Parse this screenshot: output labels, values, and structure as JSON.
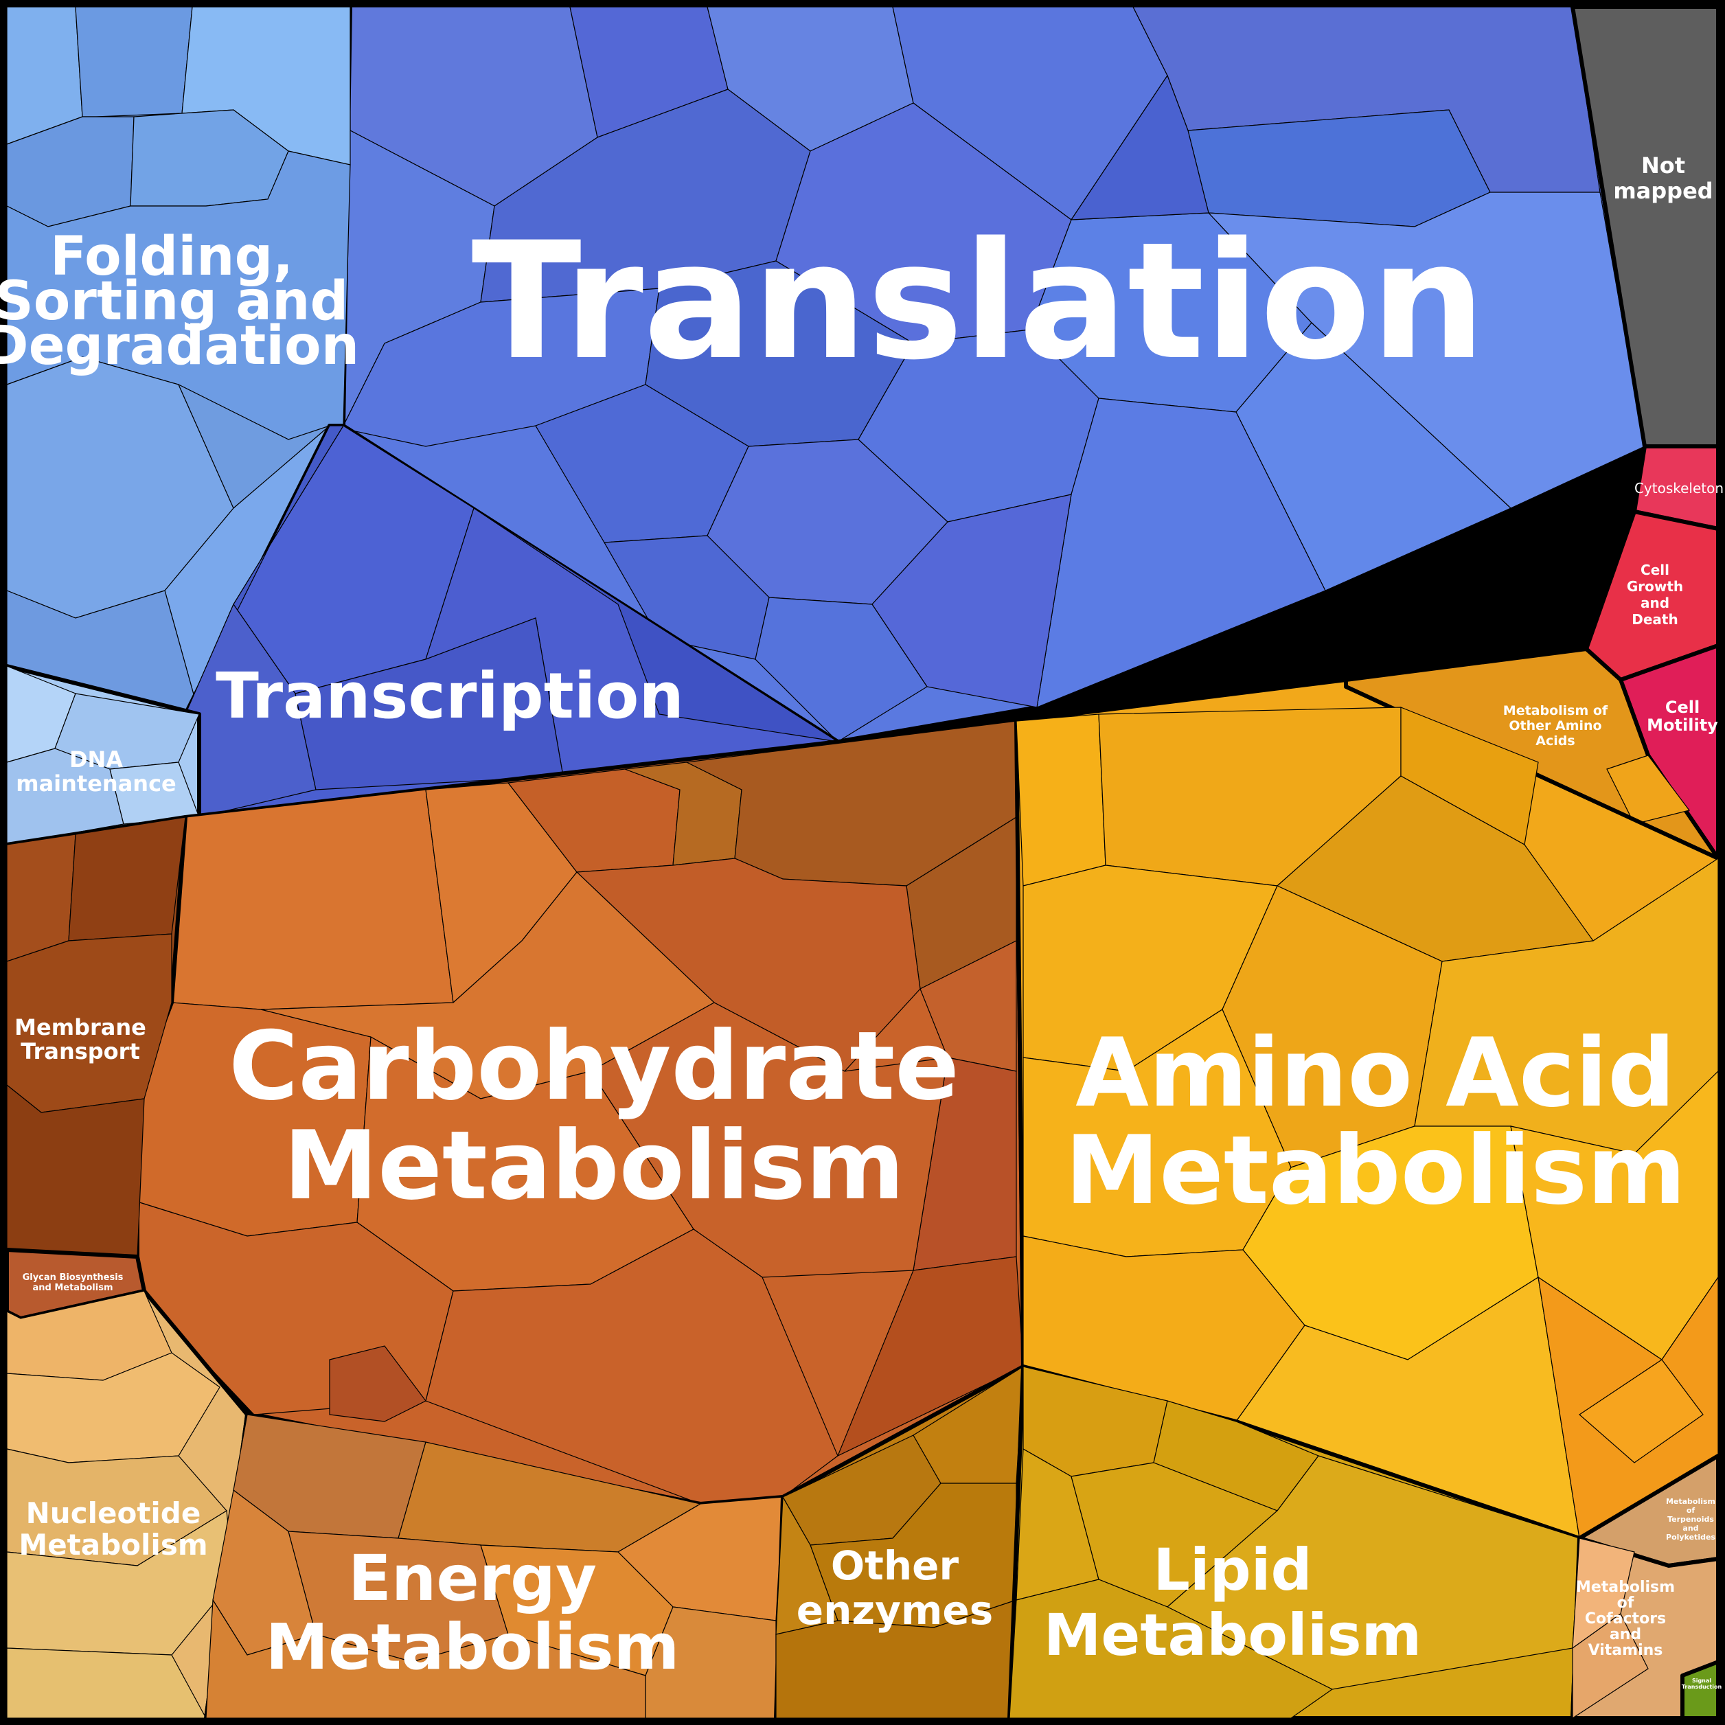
{
  "diagram": {
    "type": "voronoi-treemap",
    "regions": [
      {
        "id": "translation",
        "label_lines": [
          "Translation"
        ],
        "color": "#5a79e0"
      },
      {
        "id": "folding",
        "label_lines": [
          "Folding,",
          "Sorting and",
          "Degradation"
        ],
        "color": "#6f9de6"
      },
      {
        "id": "transcription",
        "label_lines": [
          "Transcription"
        ],
        "color": "#4a5fd0"
      },
      {
        "id": "dna",
        "label_lines": [
          "DNA",
          "maintenance"
        ],
        "color": "#a8cbf4"
      },
      {
        "id": "not_mapped",
        "label_lines": [
          "Not",
          "mapped"
        ],
        "color": "#5e5e5e"
      },
      {
        "id": "cytoskeleton",
        "label_lines": [
          "Cytoskeleton"
        ],
        "color": "#e8375a"
      },
      {
        "id": "cell_growth",
        "label_lines": [
          "Cell",
          "Growth",
          "and",
          "Death"
        ],
        "color": "#e83048"
      },
      {
        "id": "cell_motility",
        "label_lines": [
          "Cell",
          "Motility"
        ],
        "color": "#e01e58"
      },
      {
        "id": "other_amino",
        "label_lines": [
          "Metabolism of",
          "Other Amino",
          "Acids"
        ],
        "color": "#e3961a"
      },
      {
        "id": "carbohydrate",
        "label_lines": [
          "Carbohydrate",
          "Metabolism"
        ],
        "color": "#c9632a"
      },
      {
        "id": "amino_acid",
        "label_lines": [
          "Amino Acid",
          "Metabolism"
        ],
        "color": "#f2a81a"
      },
      {
        "id": "membrane",
        "label_lines": [
          "Membrane",
          "Transport"
        ],
        "color": "#9a4a1a"
      },
      {
        "id": "glycan",
        "label_lines": [
          "Glycan Biosynthesis",
          "and Metabolism"
        ],
        "color": "#b85a2e"
      },
      {
        "id": "nucleotide",
        "label_lines": [
          "Nucleotide",
          "Metabolism"
        ],
        "color": "#e8b870"
      },
      {
        "id": "energy",
        "label_lines": [
          "Energy",
          "Metabolism"
        ],
        "color": "#d8863a"
      },
      {
        "id": "other_enzymes",
        "label_lines": [
          "Other",
          "enzymes"
        ],
        "color": "#c07d10"
      },
      {
        "id": "lipid",
        "label_lines": [
          "Lipid",
          "Metabolism"
        ],
        "color": "#d6a414"
      },
      {
        "id": "terpenoids",
        "label_lines": [
          "Metabolism",
          "of",
          "Terpenoids",
          "and",
          "Polyketides"
        ],
        "color": "#d4a06a"
      },
      {
        "id": "cofactors",
        "label_lines": [
          "Metabolism",
          "of",
          "Cofactors",
          "and",
          "Vitamins"
        ],
        "color": "#e0a870"
      },
      {
        "id": "signal",
        "label_lines": [
          "Signal",
          "Transduction"
        ],
        "color": "#6a9a1a"
      }
    ]
  }
}
